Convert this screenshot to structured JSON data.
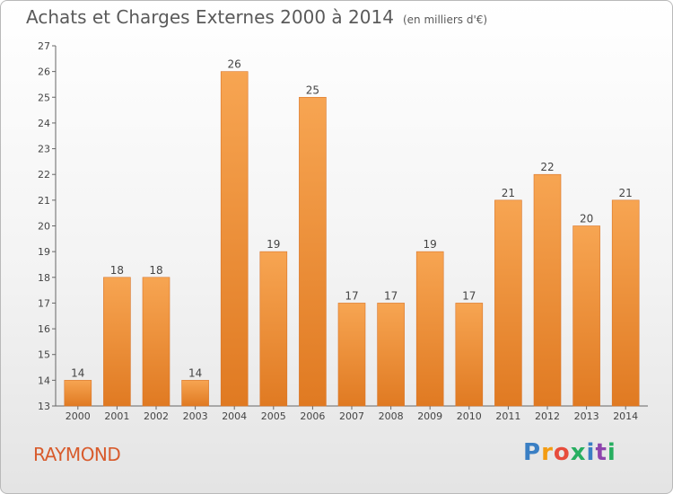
{
  "title": "Achats et Charges Externes 2000 à 2014",
  "unit": "(en milliers d'€)",
  "commune": "RAYMOND",
  "logo": "Proxiti",
  "colors": {
    "bar_light": "#f7a552",
    "bar_dark": "#e07a22",
    "label": "#444444",
    "commune": "#d85b2c"
  },
  "chart_data": {
    "type": "bar",
    "categories": [
      "2000",
      "2001",
      "2002",
      "2003",
      "2004",
      "2005",
      "2006",
      "2007",
      "2008",
      "2009",
      "2010",
      "2011",
      "2012",
      "2013",
      "2014"
    ],
    "values": [
      14,
      18,
      18,
      14,
      26,
      19,
      25,
      17,
      17,
      19,
      17,
      21,
      22,
      20,
      21
    ],
    "ylim": [
      13,
      27
    ],
    "yticks": [
      13,
      14,
      15,
      16,
      17,
      18,
      19,
      20,
      21,
      22,
      23,
      24,
      25,
      26,
      27
    ],
    "grid": false,
    "data_labels": true
  }
}
